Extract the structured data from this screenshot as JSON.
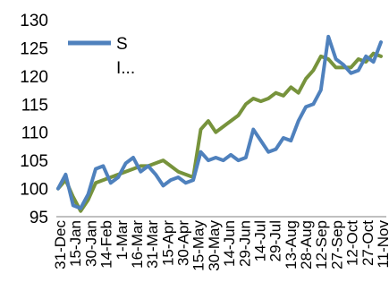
{
  "chart_data": {
    "type": "line",
    "title": "",
    "xlabel": "",
    "ylabel": "",
    "ylim": [
      95,
      130
    ],
    "yticks": [
      95,
      100,
      105,
      110,
      115,
      120,
      125,
      130
    ],
    "grid": false,
    "legend_placement": "top-left",
    "x_tick_labels": [
      "31-Dec",
      "15-Jan",
      "30-Jan",
      "14-Feb",
      "1-Mar",
      "16-Mar",
      "31-Mar",
      "15-Apr",
      "30-Apr",
      "15-May",
      "30-May",
      "14-Jun",
      "29-Jun",
      "14-Jul",
      "29-Jul",
      "13-Aug",
      "28-Aug",
      "12-Sep",
      "27-Sep",
      "12-Oct",
      "27-Oct",
      "11-Nov"
    ],
    "series": [
      {
        "name": "S",
        "color": "#4f81bd",
        "values": [
          100.0,
          102.5,
          97.0,
          96.5,
          99.0,
          103.5,
          104.0,
          101.0,
          102.0,
          104.5,
          105.5,
          103.0,
          104.0,
          102.5,
          100.5,
          101.5,
          102.0,
          101.0,
          101.5,
          106.5,
          105.0,
          105.5,
          105.0,
          106.0,
          105.0,
          105.5,
          110.5,
          108.5,
          106.5,
          107.0,
          109.0,
          108.5,
          112.0,
          114.5,
          115.0,
          117.5,
          127.0,
          123.0,
          122.0,
          120.5,
          121.0,
          123.5,
          122.5,
          126.0
        ]
      },
      {
        "name": "I...",
        "color": "#77933c",
        "values": [
          100.0,
          101.5,
          98.5,
          96.0,
          98.0,
          101.0,
          101.5,
          102.0,
          102.5,
          103.0,
          103.5,
          104.0,
          104.0,
          104.5,
          105.0,
          104.0,
          103.0,
          102.5,
          102.0,
          110.5,
          112.0,
          110.0,
          111.0,
          112.0,
          113.0,
          115.0,
          116.0,
          115.5,
          116.0,
          117.0,
          116.5,
          118.0,
          117.0,
          119.5,
          121.0,
          123.5,
          123.0,
          121.5,
          121.5,
          121.5,
          123.0,
          122.5,
          124.0,
          123.5
        ]
      }
    ]
  }
}
